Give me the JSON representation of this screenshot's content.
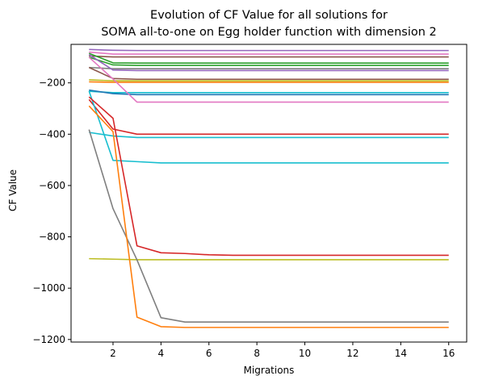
{
  "chart_data": {
    "type": "line",
    "title_line1": "Evolution of CF Value for all solutions for",
    "title_line2": "SOMA all-to-one on Egg holder function with dimension 2",
    "xlabel": "Migrations",
    "ylabel": "CF Value",
    "xlim": [
      0.25,
      16.75
    ],
    "ylim": [
      -1210,
      -50
    ],
    "xticks": [
      2,
      4,
      6,
      8,
      10,
      12,
      14,
      16
    ],
    "yticks": [
      -1200,
      -1000,
      -800,
      -600,
      -400,
      -200
    ],
    "x": [
      1,
      2,
      3,
      4,
      5,
      6,
      7,
      8,
      9,
      10,
      11,
      12,
      13,
      14,
      15,
      16
    ],
    "grid": false,
    "legend": "none",
    "series": [
      {
        "color": "#9467bd",
        "values": [
          -70,
          -73,
          -74,
          -74,
          -74,
          -74,
          -74,
          -74,
          -74,
          -74,
          -74,
          -74,
          -74,
          -74,
          -74,
          -74
        ]
      },
      {
        "color": "#e377c2",
        "values": [
          -80,
          -88,
          -88,
          -88,
          -88,
          -88,
          -88,
          -88,
          -88,
          -88,
          -88,
          -88,
          -88,
          -88,
          -88,
          -88
        ]
      },
      {
        "color": "#8c564b",
        "values": [
          -95,
          -99,
          -99,
          -99,
          -99,
          -99,
          -99,
          -99,
          -99,
          -99,
          -99,
          -99,
          -99,
          -99,
          -99,
          -99
        ]
      },
      {
        "color": "#2ca02c",
        "values": [
          -85,
          -122,
          -123,
          -123,
          -123,
          -123,
          -123,
          -123,
          -123,
          -123,
          -123,
          -123,
          -123,
          -123,
          -123,
          -123
        ]
      },
      {
        "color": "#2ca02c",
        "values": [
          -100,
          -130,
          -132,
          -132,
          -132,
          -132,
          -132,
          -132,
          -132,
          -132,
          -132,
          -132,
          -132,
          -132,
          -132,
          -132
        ]
      },
      {
        "color": "#7f7f7f",
        "values": [
          -140,
          -145,
          -145,
          -145,
          -145,
          -145,
          -145,
          -145,
          -145,
          -145,
          -145,
          -145,
          -145,
          -145,
          -145,
          -145
        ]
      },
      {
        "color": "#9467bd",
        "values": [
          -90,
          -150,
          -152,
          -152,
          -152,
          -152,
          -152,
          -152,
          -152,
          -152,
          -152,
          -152,
          -152,
          -152,
          -152,
          -152
        ]
      },
      {
        "color": "#8c564b",
        "values": [
          -140,
          -183,
          -186,
          -186,
          -186,
          -186,
          -186,
          -186,
          -186,
          -186,
          -186,
          -186,
          -186,
          -186,
          -186,
          -186
        ]
      },
      {
        "color": "#bcbd22",
        "values": [
          -188,
          -192,
          -192,
          -192,
          -192,
          -192,
          -192,
          -192,
          -192,
          -192,
          -192,
          -192,
          -192,
          -192,
          -192,
          -192
        ]
      },
      {
        "color": "#ff7f0e",
        "values": [
          -196,
          -198,
          -198,
          -198,
          -198,
          -198,
          -198,
          -198,
          -198,
          -198,
          -198,
          -198,
          -198,
          -198,
          -198,
          -198
        ]
      },
      {
        "color": "#17becf",
        "values": [
          -233,
          -238,
          -238,
          -238,
          -238,
          -238,
          -238,
          -238,
          -238,
          -238,
          -238,
          -238,
          -238,
          -238,
          -238,
          -238
        ]
      },
      {
        "color": "#1f77b4",
        "values": [
          -228,
          -242,
          -246,
          -246,
          -246,
          -246,
          -246,
          -246,
          -246,
          -246,
          -246,
          -246,
          -246,
          -246,
          -246,
          -246
        ]
      },
      {
        "color": "#e377c2",
        "values": [
          -100,
          -185,
          -275,
          -275,
          -275,
          -275,
          -275,
          -275,
          -275,
          -275,
          -275,
          -275,
          -275,
          -275,
          -275,
          -275
        ]
      },
      {
        "color": "#d62728",
        "values": [
          -265,
          -380,
          -400,
          -400,
          -400,
          -400,
          -400,
          -400,
          -400,
          -400,
          -400,
          -400,
          -400,
          -400,
          -400,
          -400
        ]
      },
      {
        "color": "#17becf",
        "values": [
          -393,
          -407,
          -413,
          -413,
          -413,
          -413,
          -413,
          -413,
          -413,
          -413,
          -413,
          -413,
          -413,
          -413,
          -413,
          -413
        ]
      },
      {
        "color": "#17becf",
        "values": [
          -232,
          -502,
          -507,
          -512,
          -512,
          -512,
          -512,
          -512,
          -512,
          -512,
          -512,
          -512,
          -512,
          -512,
          -512,
          -512
        ]
      },
      {
        "color": "#d62728",
        "values": [
          -255,
          -338,
          -835,
          -862,
          -865,
          -870,
          -872,
          -872,
          -872,
          -872,
          -872,
          -872,
          -872,
          -872,
          -872,
          -872
        ]
      },
      {
        "color": "#bcbd22",
        "values": [
          -885,
          -887,
          -889,
          -889,
          -889,
          -889,
          -889,
          -889,
          -889,
          -889,
          -889,
          -889,
          -889,
          -889,
          -889,
          -889
        ]
      },
      {
        "color": "#7f7f7f",
        "values": [
          -382,
          -690,
          -890,
          -1115,
          -1132,
          -1132,
          -1132,
          -1132,
          -1132,
          -1132,
          -1132,
          -1132,
          -1132,
          -1132,
          -1132,
          -1132
        ]
      },
      {
        "color": "#ff7f0e",
        "values": [
          -290,
          -390,
          -1113,
          -1150,
          -1153,
          -1153,
          -1153,
          -1153,
          -1153,
          -1153,
          -1153,
          -1153,
          -1153,
          -1153,
          -1153,
          -1153
        ]
      }
    ]
  }
}
